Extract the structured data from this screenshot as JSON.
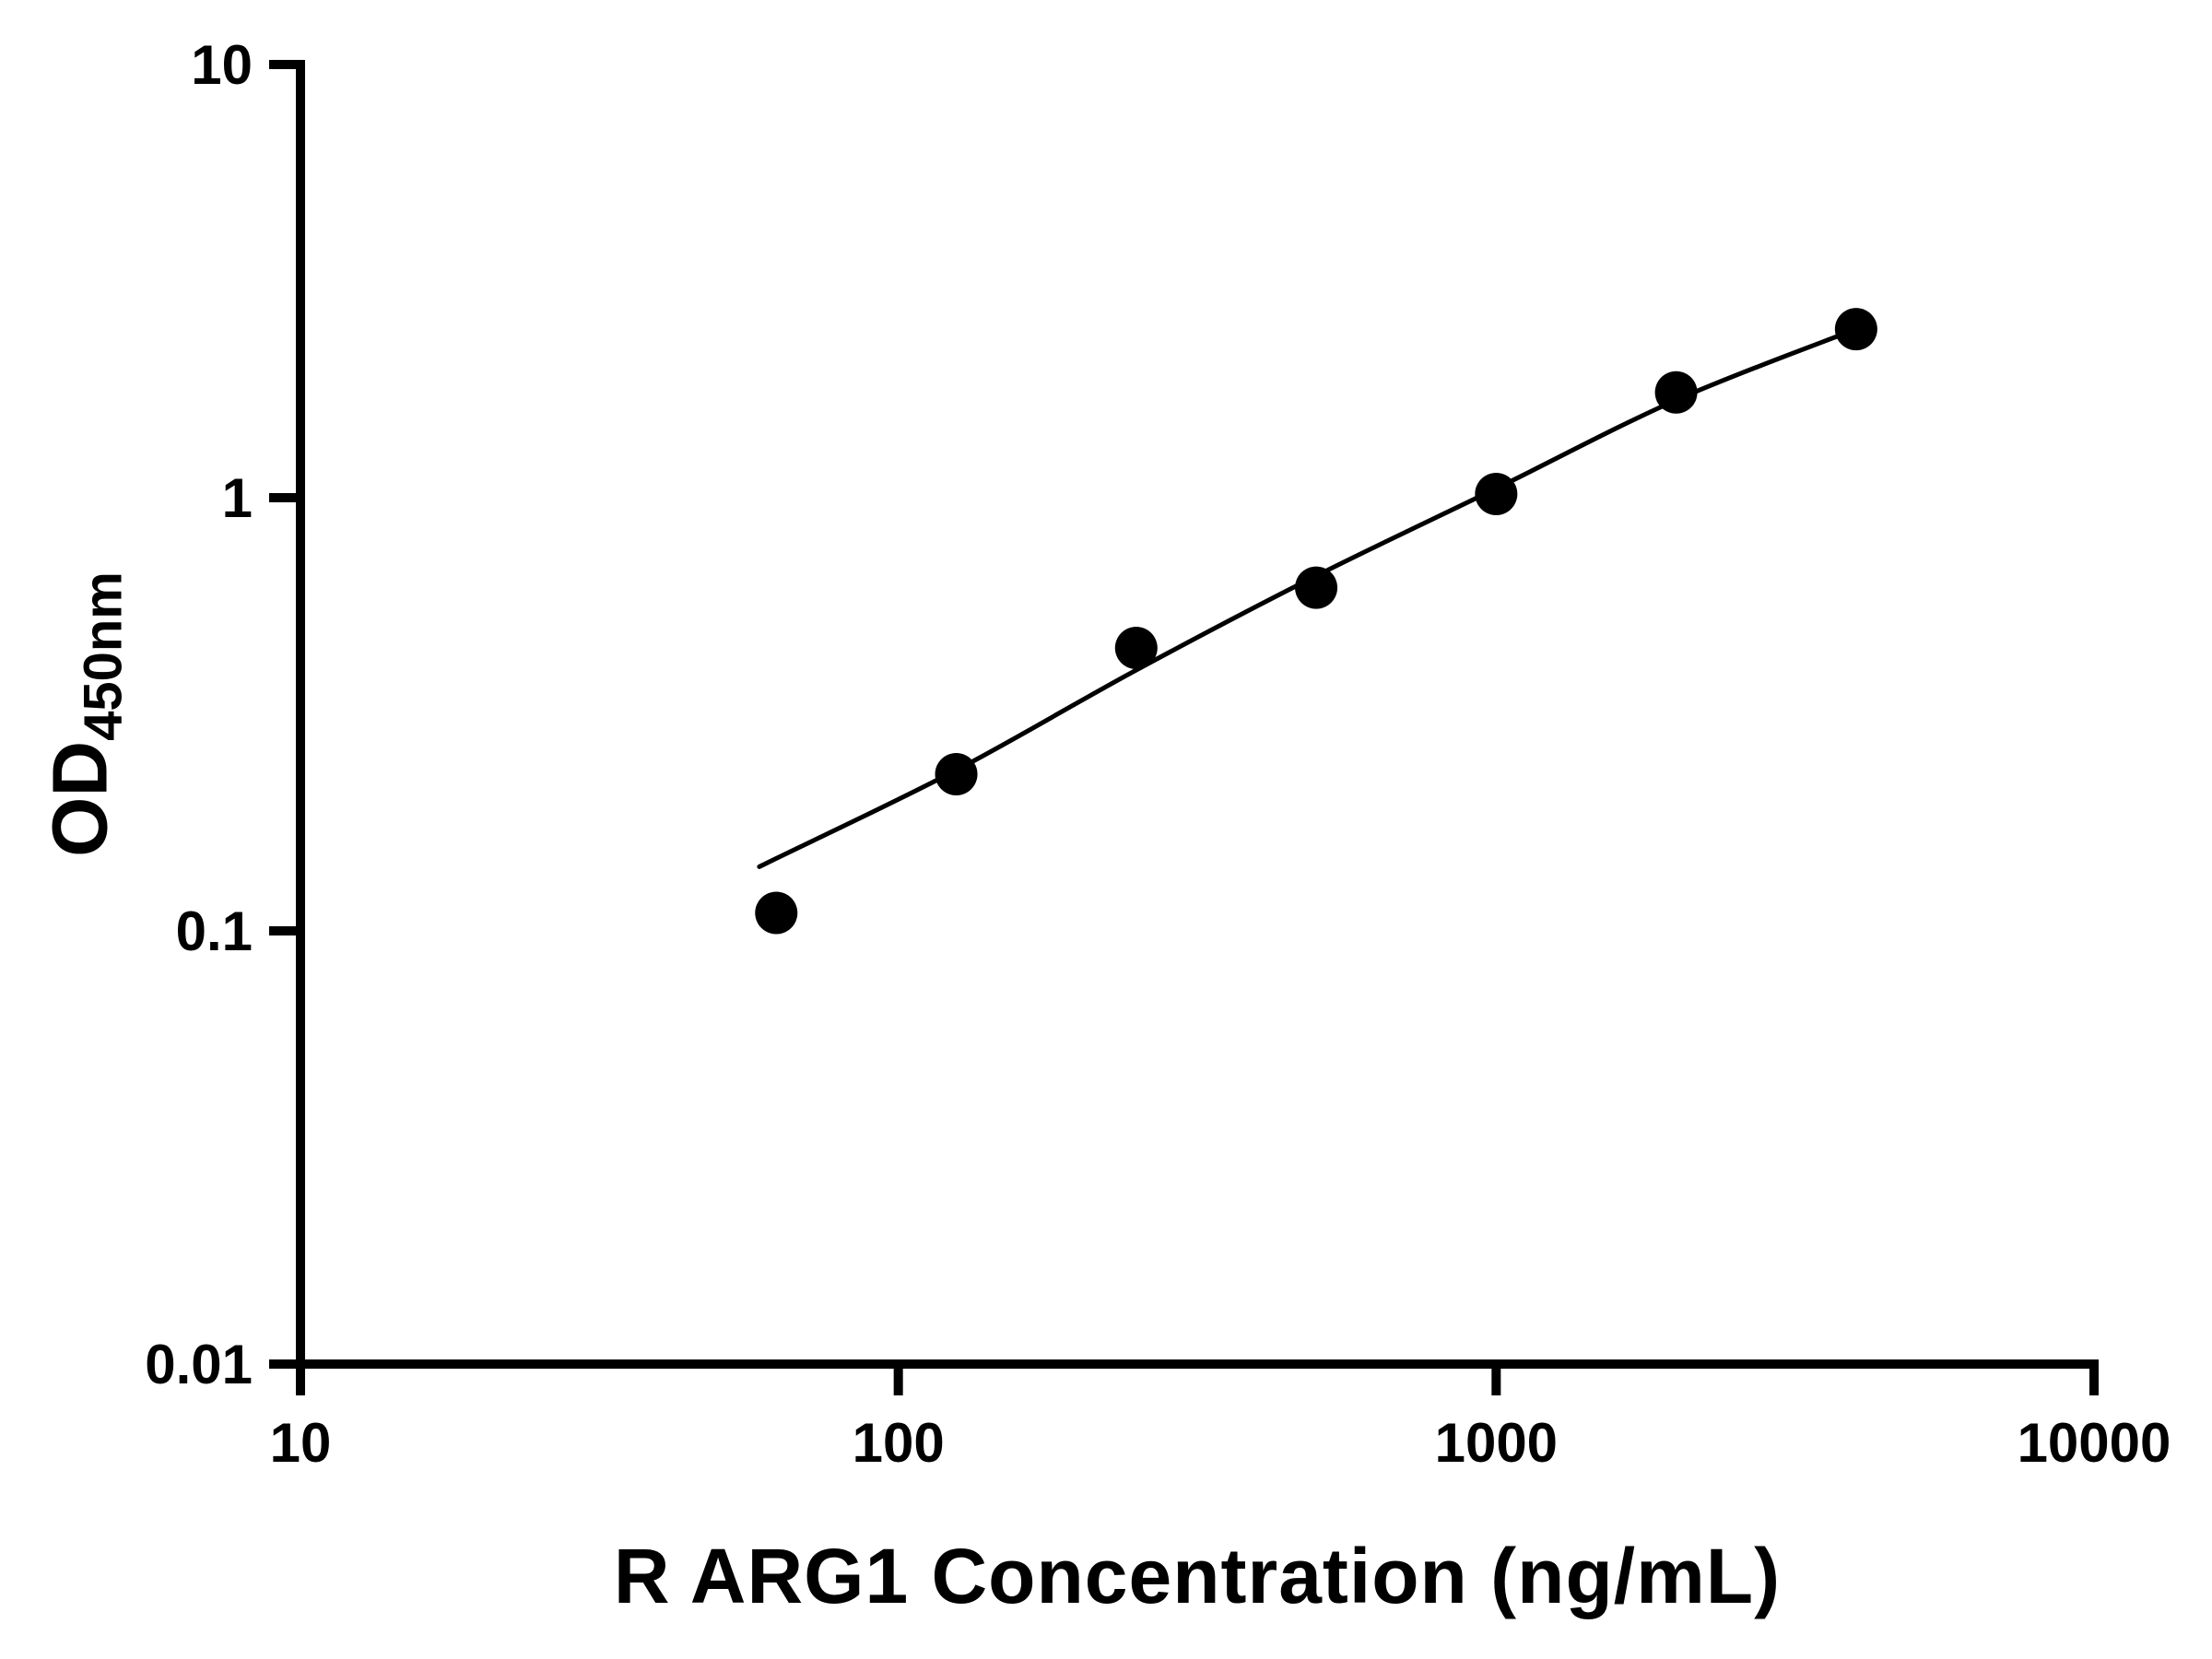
{
  "chart_data": {
    "type": "scatter",
    "title": "",
    "xlabel": "R ARG1 Concentration (ng/mL)",
    "ylabel_main": "OD",
    "ylabel_sub": "450nm",
    "x_scale": "log",
    "y_scale": "log",
    "xlim": [
      10,
      10000
    ],
    "ylim": [
      0.01,
      10
    ],
    "x_ticks": [
      10,
      100,
      1000,
      10000
    ],
    "x_tick_labels": [
      "10",
      "100",
      "1000",
      "10000"
    ],
    "y_ticks": [
      0.01,
      0.1,
      1,
      10
    ],
    "y_tick_labels": [
      "0.01",
      "0.1",
      "1",
      "10"
    ],
    "grid": false,
    "legend": null,
    "axis_color": "#000000",
    "marker_color": "#000000",
    "line_color": "#000000",
    "points": [
      {
        "x": 62.5,
        "y": 0.11
      },
      {
        "x": 125,
        "y": 0.23
      },
      {
        "x": 250,
        "y": 0.45
      },
      {
        "x": 500,
        "y": 0.62
      },
      {
        "x": 1000,
        "y": 1.02
      },
      {
        "x": 2000,
        "y": 1.75
      },
      {
        "x": 4000,
        "y": 2.45
      }
    ],
    "fit_curve": [
      {
        "x": 60,
        "y": 0.143
      },
      {
        "x": 62.5,
        "y": 0.147
      },
      {
        "x": 125,
        "y": 0.235
      },
      {
        "x": 250,
        "y": 0.4
      },
      {
        "x": 500,
        "y": 0.66
      },
      {
        "x": 1000,
        "y": 1.05
      },
      {
        "x": 2000,
        "y": 1.68
      },
      {
        "x": 4000,
        "y": 2.45
      }
    ]
  }
}
